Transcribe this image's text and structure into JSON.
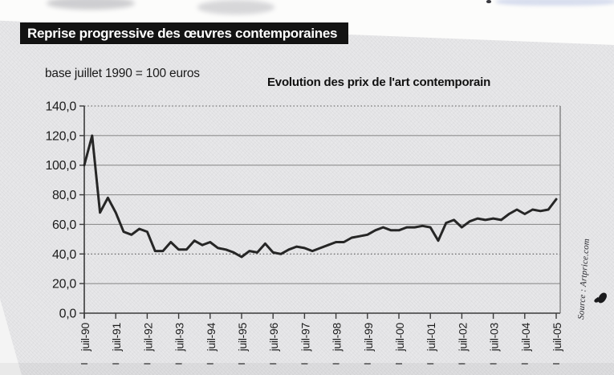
{
  "headline": {
    "text": "Reprise progressive des œuvres contemporaines"
  },
  "chart_header": {
    "base_note": "base juillet 1990 = 100 euros",
    "title": "Evolution des prix de l'art contemporain"
  },
  "source": {
    "text": "Source : Artprice.com"
  },
  "colors": {
    "paper": "#e7e7e9",
    "headline_band": "#131313",
    "line": "#262626",
    "gridline": "#8f8f8f",
    "axis": "#3a3a3a"
  },
  "chart_data": {
    "type": "line",
    "title": "Evolution des prix de l'art contemporain",
    "base_note": "base juillet 1990 = 100 euros",
    "source": "Source : Artprice.com",
    "x_start": "juil-90",
    "x_end": "juil-05",
    "x_frequency": "quarterly",
    "x_tick_labels": [
      "juil-90",
      "juil-91",
      "juil-92",
      "juil-93",
      "juil-94",
      "juil-95",
      "juil-96",
      "juil-97",
      "juil-98",
      "juil-99",
      "juil-00",
      "juil-01",
      "juil-02",
      "juil-03",
      "juil-04",
      "juil-05"
    ],
    "ylim": [
      0,
      140
    ],
    "ytick_step": 20,
    "ytick_labels": [
      "0,0",
      "20,0",
      "40,0",
      "60,0",
      "80,0",
      "100,0",
      "120,0",
      "140,0"
    ],
    "dotted_gridlines_at": [
      40,
      140
    ],
    "grid": "horizontal",
    "legend": "none",
    "line_color": "#262626",
    "series": [
      {
        "name": "Evolution des prix de l'art contemporain",
        "values": [
          100,
          120,
          68,
          78,
          68,
          55,
          53,
          57,
          55,
          42,
          42,
          48,
          43,
          43,
          49,
          46,
          48,
          44,
          43,
          41,
          38,
          42,
          41,
          47,
          41,
          40,
          43,
          45,
          44,
          42,
          44,
          46,
          48,
          48,
          51,
          52,
          53,
          56,
          58,
          56,
          56,
          58,
          58,
          59,
          58,
          49,
          61,
          63,
          58,
          62,
          64,
          63,
          64,
          63,
          67,
          70,
          67,
          70,
          69,
          70,
          77
        ]
      }
    ]
  }
}
